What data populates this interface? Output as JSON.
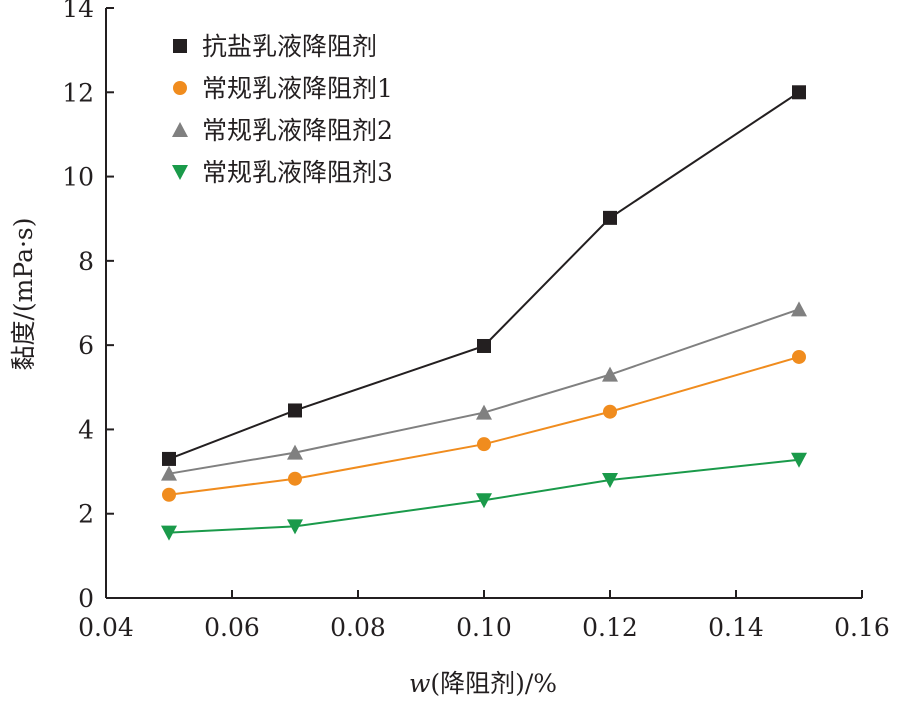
{
  "chart_data": {
    "type": "line",
    "xlabel": "w(降阻剂)/%",
    "ylabel": "黏度/(mPa·s)",
    "xlim": [
      0.04,
      0.16
    ],
    "ylim": [
      0,
      14
    ],
    "xticks": [
      "0.04",
      "0.06",
      "0.08",
      "0.10",
      "0.12",
      "0.14",
      "0.16"
    ],
    "yticks": [
      "0",
      "2",
      "4",
      "6",
      "8",
      "10",
      "12",
      "14"
    ],
    "x": [
      0.05,
      0.07,
      0.1,
      0.12,
      0.15
    ],
    "grid": false,
    "legend_position": "top-left",
    "series": [
      {
        "name": "抗盐乳液降阻剂",
        "marker": "square",
        "color": "#231f20",
        "values": [
          3.3,
          4.45,
          5.98,
          9.02,
          12.0
        ]
      },
      {
        "name": "常规乳液降阻剂1",
        "marker": "circle",
        "color": "#f08c1e",
        "values": [
          2.45,
          2.83,
          3.65,
          4.42,
          5.72
        ]
      },
      {
        "name": "常规乳液降阻剂2",
        "marker": "triangle-up",
        "color": "#808080",
        "values": [
          2.95,
          3.45,
          4.4,
          5.3,
          6.85
        ]
      },
      {
        "name": "常规乳液降阻剂3",
        "marker": "triangle-down",
        "color": "#1a9a4a",
        "values": [
          1.55,
          1.7,
          2.32,
          2.8,
          3.28
        ]
      }
    ]
  }
}
